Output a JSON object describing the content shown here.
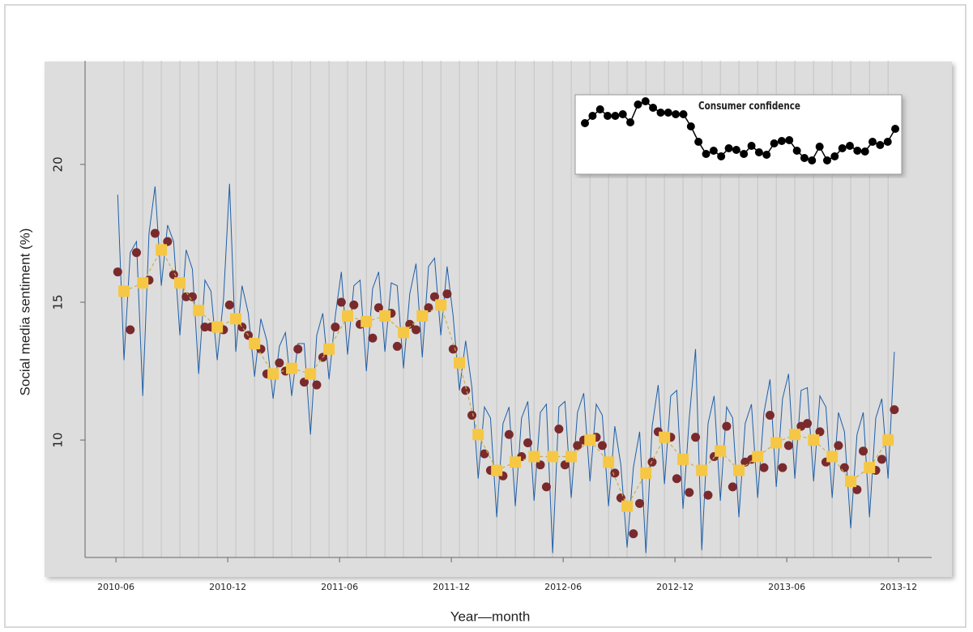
{
  "chart_data": [
    {
      "type": "line",
      "x_label": "Year—month",
      "y_label": "Social media sentiment (%)",
      "xlim": [
        2010.279,
        2014.065
      ],
      "ylim": [
        5.74,
        23.76
      ],
      "yticks": [
        10,
        15,
        20
      ],
      "xticks": [
        {
          "value": 2010.417,
          "label": "2010-06"
        },
        {
          "value": 2010.917,
          "label": "2010-12"
        },
        {
          "value": 2011.417,
          "label": "2011-06"
        },
        {
          "value": 2011.917,
          "label": "2011-12"
        },
        {
          "value": 2012.417,
          "label": "2012-06"
        },
        {
          "value": 2012.917,
          "label": "2012-12"
        },
        {
          "value": 2013.417,
          "label": "2013-06"
        },
        {
          "value": 2013.917,
          "label": "2013-12"
        }
      ],
      "grid": true,
      "series": [
        {
          "color": "#1f5fa8",
          "marker": "none",
          "x": [
            2010.425,
            2010.453,
            2010.481,
            2010.509,
            2010.537,
            2010.565,
            2010.592,
            2010.62,
            2010.648,
            2010.675,
            2010.703,
            2010.731,
            2010.759,
            2010.787,
            2010.815,
            2010.842,
            2010.87,
            2010.898,
            2010.925,
            2010.953,
            2010.981,
            2011.009,
            2011.037,
            2011.065,
            2011.092,
            2011.12,
            2011.148,
            2011.175,
            2011.203,
            2011.231,
            2011.259,
            2011.287,
            2011.315,
            2011.342,
            2011.37,
            2011.398,
            2011.425,
            2011.453,
            2011.481,
            2011.509,
            2011.537,
            2011.565,
            2011.592,
            2011.62,
            2011.648,
            2011.675,
            2011.703,
            2011.731,
            2011.759,
            2011.787,
            2011.815,
            2011.842,
            2011.87,
            2011.898,
            2011.925,
            2011.953,
            2011.981,
            2012.009,
            2012.037,
            2012.065,
            2012.092,
            2012.12,
            2012.148,
            2012.175,
            2012.203,
            2012.231,
            2012.259,
            2012.287,
            2012.315,
            2012.342,
            2012.37,
            2012.398,
            2012.425,
            2012.453,
            2012.481,
            2012.509,
            2012.537,
            2012.565,
            2012.592,
            2012.62,
            2012.648,
            2012.675,
            2012.703,
            2012.731,
            2012.759,
            2012.787,
            2012.815,
            2012.842,
            2012.87,
            2012.898,
            2012.925,
            2012.953,
            2012.981,
            2013.009,
            2013.037,
            2013.065,
            2013.092,
            2013.12,
            2013.148,
            2013.175,
            2013.203,
            2013.231,
            2013.259,
            2013.287,
            2013.315,
            2013.342,
            2013.37,
            2013.398,
            2013.425,
            2013.453,
            2013.481,
            2013.509,
            2013.537,
            2013.565,
            2013.592,
            2013.62,
            2013.648,
            2013.675,
            2013.703,
            2013.731,
            2013.759,
            2013.787,
            2013.815,
            2013.842,
            2013.87,
            2013.898
          ],
          "values": [
            18.9,
            12.9,
            16.8,
            17.2,
            11.6,
            17.5,
            19.2,
            15.6,
            17.8,
            17.2,
            13.8,
            16.9,
            16.2,
            12.4,
            15.8,
            15.4,
            12.9,
            15.1,
            19.3,
            13.2,
            15.6,
            14.6,
            12.3,
            14.4,
            13.6,
            11.5,
            13.4,
            13.9,
            11.6,
            13.5,
            13.5,
            10.2,
            13.8,
            14.6,
            12.2,
            14.5,
            16.1,
            13.1,
            15.6,
            15.8,
            12.5,
            15.5,
            16.1,
            13.2,
            15.7,
            15.6,
            12.6,
            15.3,
            16.4,
            13.0,
            16.3,
            16.6,
            13.8,
            16.3,
            14.5,
            11.8,
            13.6,
            11.9,
            8.6,
            11.2,
            10.8,
            7.2,
            10.6,
            11.2,
            7.6,
            10.8,
            11.4,
            7.8,
            11.0,
            11.3,
            5.9,
            11.2,
            11.4,
            7.9,
            11.0,
            11.7,
            8.5,
            11.3,
            10.9,
            7.6,
            10.5,
            9.1,
            6.1,
            9.0,
            10.3,
            5.9,
            10.5,
            12.0,
            8.4,
            11.6,
            11.8,
            7.5,
            10.8,
            13.3,
            6.0,
            10.6,
            11.6,
            7.8,
            11.2,
            10.8,
            7.2,
            10.6,
            11.3,
            7.9,
            11.0,
            12.2,
            8.3,
            11.5,
            12.4,
            8.6,
            11.8,
            11.9,
            8.5,
            11.6,
            11.2,
            7.9,
            11.0,
            10.3,
            6.8,
            10.2,
            11.0,
            7.2,
            10.8,
            11.5,
            8.6,
            13.2
          ]
        },
        {
          "color": "#7a2a2c",
          "marker": "circle",
          "x": [
            2010.425,
            2010.481,
            2010.509,
            2010.565,
            2010.592,
            2010.648,
            2010.675,
            2010.731,
            2010.759,
            2010.815,
            2010.842,
            2010.898,
            2010.925,
            2010.981,
            2011.009,
            2011.065,
            2011.092,
            2011.148,
            2011.175,
            2011.231,
            2011.259,
            2011.315,
            2011.342,
            2011.398,
            2011.425,
            2011.481,
            2011.509,
            2011.565,
            2011.592,
            2011.648,
            2011.675,
            2011.731,
            2011.759,
            2011.815,
            2011.842,
            2011.898,
            2011.925,
            2011.981,
            2012.009,
            2012.065,
            2012.092,
            2012.148,
            2012.175,
            2012.231,
            2012.259,
            2012.315,
            2012.342,
            2012.398,
            2012.425,
            2012.481,
            2012.509,
            2012.565,
            2012.592,
            2012.648,
            2012.675,
            2012.731,
            2012.759,
            2012.815,
            2012.842,
            2012.898,
            2012.925,
            2012.981,
            2013.009,
            2013.065,
            2013.092,
            2013.148,
            2013.175,
            2013.231,
            2013.259,
            2013.315,
            2013.342,
            2013.398,
            2013.425,
            2013.481,
            2013.509,
            2013.565,
            2013.592,
            2013.648,
            2013.675,
            2013.731,
            2013.759,
            2013.815,
            2013.842,
            2013.898
          ],
          "values": [
            16.1,
            14.0,
            16.8,
            15.8,
            17.5,
            17.2,
            16.0,
            15.2,
            15.2,
            14.1,
            14.1,
            14.0,
            14.9,
            14.1,
            13.8,
            13.3,
            12.4,
            12.8,
            12.5,
            13.3,
            12.1,
            12.0,
            13.0,
            14.1,
            15.0,
            14.9,
            14.2,
            13.7,
            14.8,
            14.6,
            13.4,
            14.2,
            14.0,
            14.8,
            15.2,
            15.3,
            13.3,
            11.8,
            10.9,
            9.5,
            8.9,
            8.7,
            10.2,
            9.4,
            9.9,
            9.1,
            8.3,
            10.4,
            9.1,
            9.8,
            10.0,
            10.1,
            9.8,
            8.8,
            7.9,
            6.6,
            7.7,
            9.2,
            10.3,
            10.1,
            8.6,
            8.1,
            10.1,
            8.0,
            9.4,
            10.5,
            8.3,
            9.2,
            9.3,
            9.0,
            10.9,
            9.0,
            9.8,
            10.5,
            10.6,
            10.3,
            9.2,
            9.8,
            9.0,
            8.2,
            9.6,
            8.9,
            9.3,
            11.1
          ]
        },
        {
          "color": "#f6c744",
          "marker": "square",
          "connect": true,
          "x": [
            2010.453,
            2010.537,
            2010.62,
            2010.703,
            2010.787,
            2010.87,
            2010.953,
            2011.037,
            2011.12,
            2011.203,
            2011.287,
            2011.37,
            2011.453,
            2011.537,
            2011.62,
            2011.703,
            2011.787,
            2011.87,
            2011.953,
            2012.037,
            2012.12,
            2012.203,
            2012.287,
            2012.37,
            2012.453,
            2012.537,
            2012.62,
            2012.703,
            2012.787,
            2012.87,
            2012.953,
            2013.037,
            2013.12,
            2013.203,
            2013.287,
            2013.37,
            2013.453,
            2013.537,
            2013.62,
            2013.703,
            2013.787,
            2013.87
          ],
          "values": [
            15.4,
            15.7,
            16.9,
            15.7,
            14.7,
            14.1,
            14.4,
            13.5,
            12.4,
            12.6,
            12.4,
            13.3,
            14.5,
            14.3,
            14.5,
            13.9,
            14.5,
            14.9,
            12.8,
            10.2,
            8.9,
            9.2,
            9.4,
            9.4,
            9.4,
            10.0,
            9.2,
            7.6,
            8.8,
            10.1,
            9.3,
            8.9,
            9.6,
            8.9,
            9.4,
            9.9,
            10.2,
            10.0,
            9.4,
            8.5,
            9.0,
            10.0
          ]
        }
      ]
    },
    {
      "type": "line",
      "title": "Consumer confidence",
      "xlim": [
        2010.346,
        2013.941
      ],
      "ylim": [
        -15,
        83
      ],
      "series": [
        {
          "color": "#000000",
          "marker": "circle",
          "x": [
            2010.453,
            2010.537,
            2010.62,
            2010.703,
            2010.787,
            2010.87,
            2010.953,
            2011.037,
            2011.12,
            2011.203,
            2011.287,
            2011.37,
            2011.453,
            2011.537,
            2011.62,
            2011.703,
            2011.787,
            2011.87,
            2011.953,
            2012.037,
            2012.12,
            2012.203,
            2012.287,
            2012.37,
            2012.453,
            2012.537,
            2012.62,
            2012.703,
            2012.787,
            2012.87,
            2012.953,
            2013.037,
            2013.12,
            2013.203,
            2013.287,
            2013.37,
            2013.453,
            2013.537,
            2013.62,
            2013.703,
            2013.787,
            2013.87
          ],
          "values": [
            48,
            57,
            65,
            57,
            57,
            59,
            49,
            71,
            75,
            67,
            61,
            61,
            59,
            59,
            44,
            25,
            10,
            14,
            7,
            17,
            15,
            10,
            20,
            12,
            9,
            23,
            26,
            27,
            14,
            5,
            2,
            19,
            2,
            7,
            17,
            20,
            14,
            13,
            25,
            21,
            25,
            41
          ]
        }
      ]
    }
  ]
}
